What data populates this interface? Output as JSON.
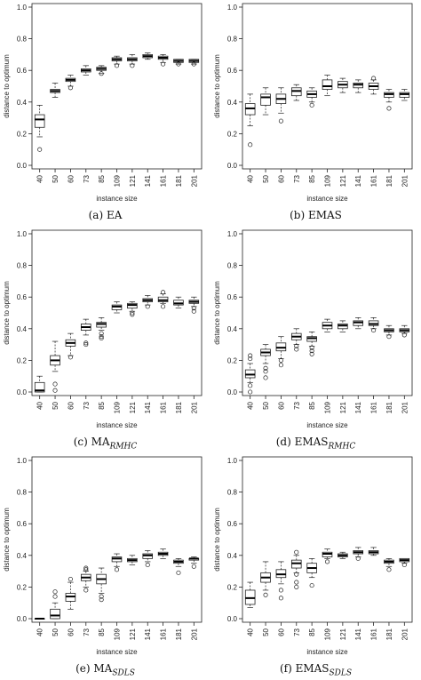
{
  "chart_data": [
    {
      "type": "box",
      "caption": {
        "main": "(a) EA",
        "sub": ""
      },
      "xlabel": "instance size",
      "ylabel": "distance to optimum",
      "ylim": [
        0,
        1.0
      ],
      "yticks": [
        "0.0",
        "0.2",
        "0.4",
        "0.6",
        "0.8",
        "1.0"
      ],
      "categories": [
        "40",
        "50",
        "60",
        "73",
        "85",
        "109",
        "121",
        "141",
        "161",
        "181",
        "201"
      ],
      "boxes": [
        {
          "min": 0.18,
          "q1": 0.24,
          "median": 0.29,
          "q3": 0.32,
          "max": 0.38,
          "outliers": [
            0.1
          ]
        },
        {
          "min": 0.43,
          "q1": 0.46,
          "median": 0.47,
          "q3": 0.48,
          "max": 0.52,
          "outliers": []
        },
        {
          "min": 0.5,
          "q1": 0.53,
          "median": 0.54,
          "q3": 0.55,
          "max": 0.57,
          "outliers": [
            0.49
          ]
        },
        {
          "min": 0.57,
          "q1": 0.59,
          "median": 0.6,
          "q3": 0.61,
          "max": 0.63,
          "outliers": []
        },
        {
          "min": 0.58,
          "q1": 0.6,
          "median": 0.61,
          "q3": 0.62,
          "max": 0.63,
          "outliers": [
            0.58
          ]
        },
        {
          "min": 0.64,
          "q1": 0.66,
          "median": 0.67,
          "q3": 0.68,
          "max": 0.69,
          "outliers": [
            0.63
          ]
        },
        {
          "min": 0.64,
          "q1": 0.66,
          "median": 0.67,
          "q3": 0.68,
          "max": 0.7,
          "outliers": [
            0.63
          ]
        },
        {
          "min": 0.67,
          "q1": 0.68,
          "median": 0.69,
          "q3": 0.7,
          "max": 0.71,
          "outliers": []
        },
        {
          "min": 0.65,
          "q1": 0.67,
          "median": 0.68,
          "q3": 0.69,
          "max": 0.7,
          "outliers": [
            0.64
          ]
        },
        {
          "min": 0.64,
          "q1": 0.65,
          "median": 0.66,
          "q3": 0.67,
          "max": 0.67,
          "outliers": [
            0.64
          ]
        },
        {
          "min": 0.64,
          "q1": 0.65,
          "median": 0.66,
          "q3": 0.67,
          "max": 0.67,
          "outliers": [
            0.64
          ]
        }
      ]
    },
    {
      "type": "box",
      "caption": {
        "main": "(b) EMAS",
        "sub": ""
      },
      "xlabel": "instance size",
      "ylabel": "distance to optimum",
      "ylim": [
        0,
        1.0
      ],
      "yticks": [
        "0.0",
        "0.2",
        "0.4",
        "0.6",
        "0.8",
        "1.0"
      ],
      "categories": [
        "40",
        "50",
        "60",
        "73",
        "85",
        "109",
        "121",
        "141",
        "161",
        "181",
        "201"
      ],
      "boxes": [
        {
          "min": 0.25,
          "q1": 0.32,
          "median": 0.36,
          "q3": 0.39,
          "max": 0.45,
          "outliers": [
            0.13
          ]
        },
        {
          "min": 0.32,
          "q1": 0.38,
          "median": 0.43,
          "q3": 0.45,
          "max": 0.49,
          "outliers": []
        },
        {
          "min": 0.33,
          "q1": 0.39,
          "median": 0.42,
          "q3": 0.45,
          "max": 0.49,
          "outliers": [
            0.28
          ]
        },
        {
          "min": 0.41,
          "q1": 0.44,
          "median": 0.47,
          "q3": 0.49,
          "max": 0.51,
          "outliers": []
        },
        {
          "min": 0.4,
          "q1": 0.43,
          "median": 0.45,
          "q3": 0.47,
          "max": 0.49,
          "outliers": [
            0.38
          ]
        },
        {
          "min": 0.44,
          "q1": 0.48,
          "median": 0.5,
          "q3": 0.54,
          "max": 0.57,
          "outliers": []
        },
        {
          "min": 0.46,
          "q1": 0.49,
          "median": 0.51,
          "q3": 0.53,
          "max": 0.55,
          "outliers": []
        },
        {
          "min": 0.46,
          "q1": 0.49,
          "median": 0.51,
          "q3": 0.52,
          "max": 0.54,
          "outliers": []
        },
        {
          "min": 0.45,
          "q1": 0.48,
          "median": 0.5,
          "q3": 0.52,
          "max": 0.54,
          "outliers": [
            0.55
          ]
        },
        {
          "min": 0.4,
          "q1": 0.43,
          "median": 0.45,
          "q3": 0.46,
          "max": 0.48,
          "outliers": [
            0.36
          ]
        },
        {
          "min": 0.41,
          "q1": 0.43,
          "median": 0.45,
          "q3": 0.46,
          "max": 0.48,
          "outliers": []
        }
      ]
    },
    {
      "type": "box",
      "caption": {
        "main": "(c) MA",
        "sub": "RMHC"
      },
      "xlabel": "instance size",
      "ylabel": "distance to optimum",
      "ylim": [
        0,
        1.0
      ],
      "yticks": [
        "0.0",
        "0.2",
        "0.4",
        "0.6",
        "0.8",
        "1.0"
      ],
      "categories": [
        "40",
        "50",
        "60",
        "73",
        "85",
        "109",
        "121",
        "141",
        "161",
        "181",
        "201"
      ],
      "boxes": [
        {
          "min": 0.0,
          "q1": 0.0,
          "median": 0.01,
          "q3": 0.06,
          "max": 0.1,
          "outliers": []
        },
        {
          "min": 0.13,
          "q1": 0.17,
          "median": 0.2,
          "q3": 0.23,
          "max": 0.32,
          "outliers": [
            0.05,
            0.01
          ]
        },
        {
          "min": 0.23,
          "q1": 0.29,
          "median": 0.31,
          "q3": 0.33,
          "max": 0.37,
          "outliers": [
            0.22
          ]
        },
        {
          "min": 0.36,
          "q1": 0.39,
          "median": 0.41,
          "q3": 0.43,
          "max": 0.46,
          "outliers": [
            0.31,
            0.3
          ]
        },
        {
          "min": 0.39,
          "q1": 0.41,
          "median": 0.43,
          "q3": 0.44,
          "max": 0.47,
          "outliers": [
            0.37,
            0.35,
            0.34
          ]
        },
        {
          "min": 0.5,
          "q1": 0.52,
          "median": 0.54,
          "q3": 0.55,
          "max": 0.57,
          "outliers": []
        },
        {
          "min": 0.51,
          "q1": 0.53,
          "median": 0.55,
          "q3": 0.56,
          "max": 0.57,
          "outliers": [
            0.5,
            0.49
          ]
        },
        {
          "min": 0.55,
          "q1": 0.57,
          "median": 0.58,
          "q3": 0.59,
          "max": 0.61,
          "outliers": [
            0.54
          ]
        },
        {
          "min": 0.56,
          "q1": 0.57,
          "median": 0.58,
          "q3": 0.6,
          "max": 0.62,
          "outliers": [
            0.63,
            0.54
          ]
        },
        {
          "min": 0.53,
          "q1": 0.55,
          "median": 0.56,
          "q3": 0.58,
          "max": 0.6,
          "outliers": []
        },
        {
          "min": 0.54,
          "q1": 0.56,
          "median": 0.57,
          "q3": 0.58,
          "max": 0.6,
          "outliers": [
            0.51,
            0.53
          ]
        }
      ]
    },
    {
      "type": "box",
      "caption": {
        "main": "(d) EMAS",
        "sub": "RMHC"
      },
      "xlabel": "instance size",
      "ylabel": "distance to optimum",
      "ylim": [
        0,
        1.0
      ],
      "yticks": [
        "0.0",
        "0.2",
        "0.4",
        "0.6",
        "0.8",
        "1.0"
      ],
      "categories": [
        "40",
        "50",
        "60",
        "73",
        "85",
        "109",
        "121",
        "141",
        "161",
        "181",
        "201"
      ],
      "boxes": [
        {
          "min": 0.06,
          "q1": 0.09,
          "median": 0.11,
          "q3": 0.14,
          "max": 0.18,
          "outliers": [
            0.23,
            0.21,
            0.04,
            0.0
          ]
        },
        {
          "min": 0.18,
          "q1": 0.23,
          "median": 0.25,
          "q3": 0.27,
          "max": 0.3,
          "outliers": [
            0.15,
            0.13,
            0.09
          ]
        },
        {
          "min": 0.21,
          "q1": 0.26,
          "median": 0.28,
          "q3": 0.31,
          "max": 0.35,
          "outliers": [
            0.2,
            0.17
          ]
        },
        {
          "min": 0.3,
          "q1": 0.33,
          "median": 0.35,
          "q3": 0.37,
          "max": 0.4,
          "outliers": [
            0.29,
            0.27
          ]
        },
        {
          "min": 0.29,
          "q1": 0.32,
          "median": 0.34,
          "q3": 0.35,
          "max": 0.38,
          "outliers": [
            0.28,
            0.26,
            0.24
          ]
        },
        {
          "min": 0.38,
          "q1": 0.4,
          "median": 0.42,
          "q3": 0.44,
          "max": 0.46,
          "outliers": []
        },
        {
          "min": 0.38,
          "q1": 0.4,
          "median": 0.42,
          "q3": 0.43,
          "max": 0.45,
          "outliers": []
        },
        {
          "min": 0.4,
          "q1": 0.42,
          "median": 0.44,
          "q3": 0.45,
          "max": 0.47,
          "outliers": []
        },
        {
          "min": 0.4,
          "q1": 0.42,
          "median": 0.43,
          "q3": 0.45,
          "max": 0.47,
          "outliers": [
            0.39
          ]
        },
        {
          "min": 0.36,
          "q1": 0.38,
          "median": 0.39,
          "q3": 0.4,
          "max": 0.42,
          "outliers": [
            0.35
          ]
        },
        {
          "min": 0.37,
          "q1": 0.38,
          "median": 0.39,
          "q3": 0.4,
          "max": 0.42,
          "outliers": [
            0.36
          ]
        }
      ]
    },
    {
      "type": "box",
      "caption": {
        "main": "(e) MA",
        "sub": "SDLS"
      },
      "xlabel": "instance size",
      "ylabel": "distance to optimum",
      "ylim": [
        0,
        1.0
      ],
      "yticks": [
        "0.0",
        "0.2",
        "0.4",
        "0.6",
        "0.8",
        "1.0"
      ],
      "categories": [
        "40",
        "50",
        "60",
        "73",
        "85",
        "109",
        "121",
        "141",
        "161",
        "181",
        "201"
      ],
      "boxes": [
        {
          "min": 0.0,
          "q1": 0.0,
          "median": 0.0,
          "q3": 0.0,
          "max": 0.0,
          "outliers": []
        },
        {
          "min": 0.0,
          "q1": 0.0,
          "median": 0.02,
          "q3": 0.06,
          "max": 0.1,
          "outliers": [
            0.17,
            0.14
          ]
        },
        {
          "min": 0.06,
          "q1": 0.11,
          "median": 0.14,
          "q3": 0.16,
          "max": 0.23,
          "outliers": [
            0.25
          ]
        },
        {
          "min": 0.2,
          "q1": 0.24,
          "median": 0.26,
          "q3": 0.28,
          "max": 0.3,
          "outliers": [
            0.32,
            0.31,
            0.18
          ]
        },
        {
          "min": 0.16,
          "q1": 0.22,
          "median": 0.25,
          "q3": 0.28,
          "max": 0.32,
          "outliers": [
            0.14,
            0.12
          ]
        },
        {
          "min": 0.33,
          "q1": 0.36,
          "median": 0.38,
          "q3": 0.39,
          "max": 0.41,
          "outliers": [
            0.31
          ]
        },
        {
          "min": 0.34,
          "q1": 0.36,
          "median": 0.37,
          "q3": 0.38,
          "max": 0.4,
          "outliers": []
        },
        {
          "min": 0.36,
          "q1": 0.38,
          "median": 0.4,
          "q3": 0.41,
          "max": 0.43,
          "outliers": [
            0.34
          ]
        },
        {
          "min": 0.38,
          "q1": 0.4,
          "median": 0.41,
          "q3": 0.42,
          "max": 0.44,
          "outliers": []
        },
        {
          "min": 0.33,
          "q1": 0.35,
          "median": 0.36,
          "q3": 0.37,
          "max": 0.38,
          "outliers": [
            0.29
          ]
        },
        {
          "min": 0.35,
          "q1": 0.37,
          "median": 0.38,
          "q3": 0.38,
          "max": 0.39,
          "outliers": [
            0.33
          ]
        }
      ]
    },
    {
      "type": "box",
      "caption": {
        "main": "(f) EMAS",
        "sub": "SDLS"
      },
      "xlabel": "instance size",
      "ylabel": "distance to optimum",
      "ylim": [
        0,
        1.0
      ],
      "yticks": [
        "0.0",
        "0.2",
        "0.4",
        "0.6",
        "0.8",
        "1.0"
      ],
      "categories": [
        "40",
        "50",
        "60",
        "73",
        "85",
        "109",
        "121",
        "141",
        "161",
        "181",
        "201"
      ],
      "boxes": [
        {
          "min": 0.07,
          "q1": 0.09,
          "median": 0.13,
          "q3": 0.18,
          "max": 0.23,
          "outliers": []
        },
        {
          "min": 0.18,
          "q1": 0.23,
          "median": 0.26,
          "q3": 0.29,
          "max": 0.36,
          "outliers": [
            0.15
          ]
        },
        {
          "min": 0.22,
          "q1": 0.26,
          "median": 0.28,
          "q3": 0.31,
          "max": 0.36,
          "outliers": [
            0.18,
            0.13
          ]
        },
        {
          "min": 0.29,
          "q1": 0.32,
          "median": 0.35,
          "q3": 0.37,
          "max": 0.4,
          "outliers": [
            0.42,
            0.28,
            0.23,
            0.2
          ]
        },
        {
          "min": 0.26,
          "q1": 0.29,
          "median": 0.32,
          "q3": 0.35,
          "max": 0.38,
          "outliers": [
            0.21
          ]
        },
        {
          "min": 0.38,
          "q1": 0.39,
          "median": 0.41,
          "q3": 0.42,
          "max": 0.44,
          "outliers": [
            0.36
          ]
        },
        {
          "min": 0.38,
          "q1": 0.39,
          "median": 0.4,
          "q3": 0.41,
          "max": 0.42,
          "outliers": []
        },
        {
          "min": 0.39,
          "q1": 0.41,
          "median": 0.42,
          "q3": 0.43,
          "max": 0.45,
          "outliers": [
            0.38
          ]
        },
        {
          "min": 0.4,
          "q1": 0.41,
          "median": 0.42,
          "q3": 0.43,
          "max": 0.45,
          "outliers": []
        },
        {
          "min": 0.33,
          "q1": 0.35,
          "median": 0.36,
          "q3": 0.37,
          "max": 0.38,
          "outliers": [
            0.31
          ]
        },
        {
          "min": 0.35,
          "q1": 0.36,
          "median": 0.37,
          "q3": 0.38,
          "max": 0.38,
          "outliers": [
            0.34
          ]
        }
      ]
    }
  ]
}
